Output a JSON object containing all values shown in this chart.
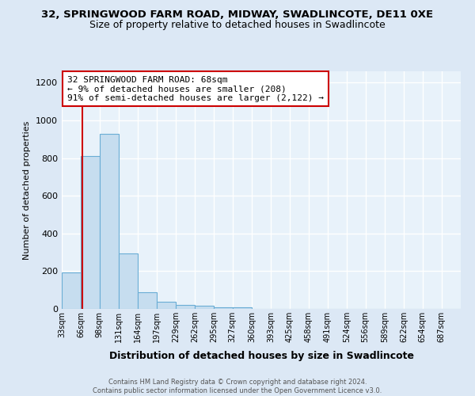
{
  "title1": "32, SPRINGWOOD FARM ROAD, MIDWAY, SWADLINCOTE, DE11 0XE",
  "title2": "Size of property relative to detached houses in Swadlincote",
  "xlabel": "Distribution of detached houses by size in Swadlincote",
  "ylabel": "Number of detached properties",
  "bin_labels": [
    "33sqm",
    "66sqm",
    "98sqm",
    "131sqm",
    "164sqm",
    "197sqm",
    "229sqm",
    "262sqm",
    "295sqm",
    "327sqm",
    "360sqm",
    "393sqm",
    "425sqm",
    "458sqm",
    "491sqm",
    "524sqm",
    "556sqm",
    "589sqm",
    "622sqm",
    "654sqm",
    "687sqm"
  ],
  "bin_edges": [
    33,
    66,
    98,
    131,
    164,
    197,
    229,
    262,
    295,
    327,
    360,
    393,
    425,
    458,
    491,
    524,
    556,
    589,
    622,
    654,
    687,
    720
  ],
  "bar_heights": [
    195,
    810,
    930,
    295,
    88,
    38,
    20,
    15,
    10,
    8,
    0,
    0,
    0,
    0,
    0,
    0,
    0,
    0,
    0,
    0,
    0
  ],
  "bar_color": "#c6ddef",
  "bar_edge_color": "#6aadd5",
  "property_size": 68,
  "red_line_color": "#cc0000",
  "annotation_text": "32 SPRINGWOOD FARM ROAD: 68sqm\n← 9% of detached houses are smaller (208)\n91% of semi-detached houses are larger (2,122) →",
  "annotation_box_color": "white",
  "annotation_box_edge_color": "#cc0000",
  "ylim": [
    0,
    1260
  ],
  "yticks": [
    0,
    200,
    400,
    600,
    800,
    1000,
    1200
  ],
  "footer_text": "Contains HM Land Registry data © Crown copyright and database right 2024.\nContains public sector information licensed under the Open Government Licence v3.0.",
  "bg_color": "#dce8f5",
  "plot_bg_color": "#e8f2fa",
  "grid_color": "#ffffff",
  "title1_fontsize": 9.5,
  "title2_fontsize": 9
}
